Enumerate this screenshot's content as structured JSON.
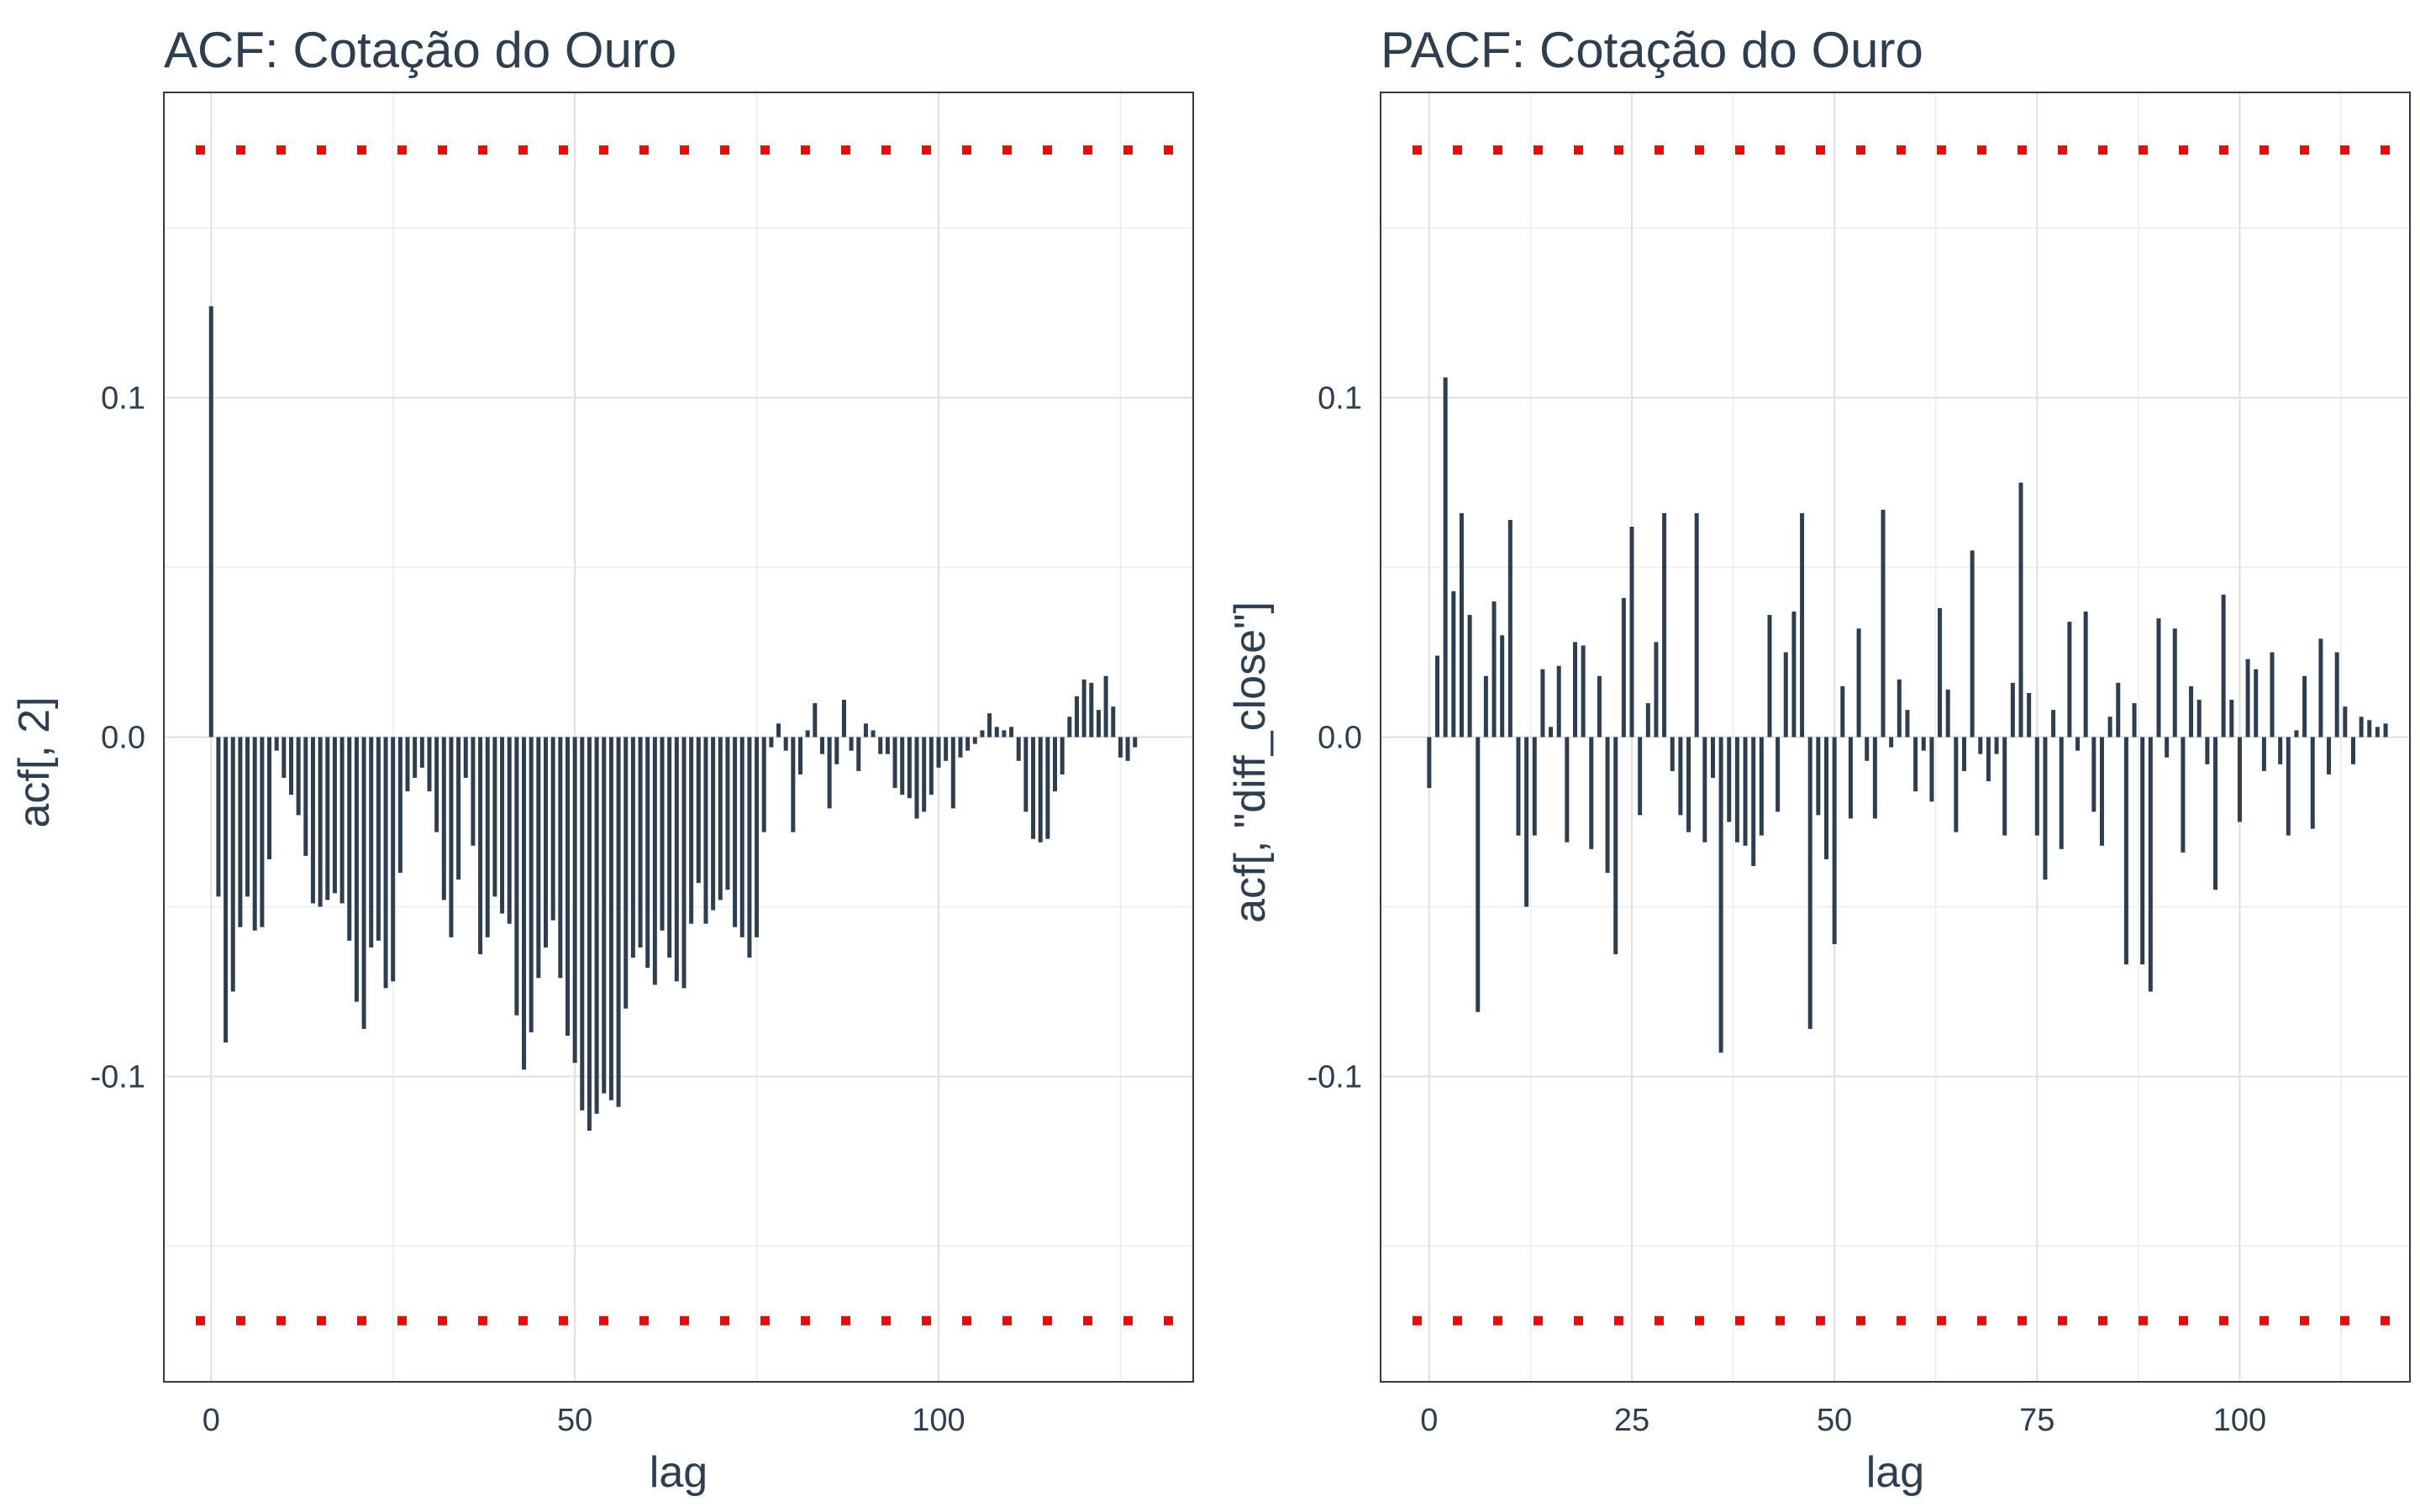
{
  "colors": {
    "bar": "#2c3e50",
    "limit": "#ff0000",
    "grid": "#e0e0e0",
    "frame": "#2c3e50",
    "text": "#2c3e50"
  },
  "chart_data": [
    {
      "type": "bar",
      "title": "ACF: Cotação do Ouro",
      "xlabel": "lag",
      "ylabel": "acf[, 2]",
      "xlim": [
        -6.5,
        135
      ],
      "ylim": [
        -0.19,
        0.19
      ],
      "xticks": [
        0,
        50,
        100
      ],
      "xtick_labels": [
        "0",
        "50",
        "100"
      ],
      "yticks": [
        -0.1,
        0.0,
        0.1
      ],
      "ytick_labels": [
        "-0.1",
        "0.0",
        "0.1"
      ],
      "grid": true,
      "limit_lines": [
        0.173,
        -0.172
      ],
      "x": [
        0,
        1,
        2,
        3,
        4,
        5,
        6,
        7,
        8,
        9,
        10,
        11,
        12,
        13,
        14,
        15,
        16,
        17,
        18,
        19,
        20,
        21,
        22,
        23,
        24,
        25,
        26,
        27,
        28,
        29,
        30,
        31,
        32,
        33,
        34,
        35,
        36,
        37,
        38,
        39,
        40,
        41,
        42,
        43,
        44,
        45,
        46,
        47,
        48,
        49,
        50,
        51,
        52,
        53,
        54,
        55,
        56,
        57,
        58,
        59,
        60,
        61,
        62,
        63,
        64,
        65,
        66,
        67,
        68,
        69,
        70,
        71,
        72,
        73,
        74,
        75,
        76,
        77,
        78,
        79,
        80,
        81,
        82,
        83,
        84,
        85,
        86,
        87,
        88,
        89,
        90,
        91,
        92,
        93,
        94,
        95,
        96,
        97,
        98,
        99,
        100,
        101,
        102,
        103,
        104,
        105,
        106,
        107,
        108,
        109,
        110,
        111,
        112,
        113,
        114,
        115,
        116,
        117,
        118,
        119,
        120,
        121,
        122,
        123,
        124,
        125,
        126,
        127
      ],
      "values": [
        0.127,
        -0.047,
        -0.09,
        -0.075,
        -0.056,
        -0.047,
        -0.057,
        -0.056,
        -0.036,
        -0.004,
        -0.012,
        -0.017,
        -0.023,
        -0.035,
        -0.049,
        -0.05,
        -0.048,
        -0.046,
        -0.049,
        -0.06,
        -0.078,
        -0.086,
        -0.062,
        -0.06,
        -0.074,
        -0.072,
        -0.04,
        -0.016,
        -0.012,
        -0.009,
        -0.016,
        -0.028,
        -0.048,
        -0.059,
        -0.042,
        -0.012,
        -0.032,
        -0.064,
        -0.059,
        -0.047,
        -0.052,
        -0.055,
        -0.082,
        -0.098,
        -0.087,
        -0.071,
        -0.062,
        -0.054,
        -0.071,
        -0.088,
        -0.096,
        -0.11,
        -0.116,
        -0.111,
        -0.105,
        -0.107,
        -0.109,
        -0.08,
        -0.065,
        -0.062,
        -0.068,
        -0.073,
        -0.057,
        -0.065,
        -0.072,
        -0.074,
        -0.055,
        -0.043,
        -0.055,
        -0.051,
        -0.048,
        -0.045,
        -0.056,
        -0.059,
        -0.065,
        -0.059,
        -0.028,
        -0.003,
        0.004,
        -0.004,
        -0.028,
        -0.011,
        0.002,
        0.01,
        -0.005,
        -0.021,
        -0.008,
        0.011,
        -0.004,
        -0.01,
        0.004,
        0.002,
        -0.005,
        -0.005,
        -0.015,
        -0.017,
        -0.018,
        -0.024,
        -0.022,
        -0.017,
        -0.009,
        -0.007,
        -0.021,
        -0.006,
        -0.004,
        -0.002,
        0.002,
        0.007,
        0.003,
        0.002,
        0.003,
        -0.007,
        -0.022,
        -0.03,
        -0.031,
        -0.03,
        -0.016,
        -0.011,
        0.006,
        0.012,
        0.017,
        0.016,
        0.008,
        0.018,
        0.009,
        -0.006,
        -0.007,
        -0.003
      ]
    },
    {
      "type": "bar",
      "title": "PACF: Cotação do Ouro",
      "xlabel": "lag",
      "ylabel": "acf[, \"diff_close\"]",
      "xlim": [
        -6,
        121
      ],
      "ylim": [
        -0.19,
        0.19
      ],
      "xticks": [
        0,
        25,
        50,
        75,
        100
      ],
      "xtick_labels": [
        "0",
        "25",
        "50",
        "75",
        "100"
      ],
      "yticks": [
        -0.1,
        0.0,
        0.1
      ],
      "ytick_labels": [
        "-0.1",
        "0.0",
        "0.1"
      ],
      "grid": true,
      "limit_lines": [
        0.173,
        -0.172
      ],
      "x": [
        0,
        1,
        2,
        3,
        4,
        5,
        6,
        7,
        8,
        9,
        10,
        11,
        12,
        13,
        14,
        15,
        16,
        17,
        18,
        19,
        20,
        21,
        22,
        23,
        24,
        25,
        26,
        27,
        28,
        29,
        30,
        31,
        32,
        33,
        34,
        35,
        36,
        37,
        38,
        39,
        40,
        41,
        42,
        43,
        44,
        45,
        46,
        47,
        48,
        49,
        50,
        51,
        52,
        53,
        54,
        55,
        56,
        57,
        58,
        59,
        60,
        61,
        62,
        63,
        64,
        65,
        66,
        67,
        68,
        69,
        70,
        71,
        72,
        73,
        74,
        75,
        76,
        77,
        78,
        79,
        80,
        81,
        82,
        83,
        84,
        85,
        86,
        87,
        88,
        89,
        90,
        91,
        92,
        93,
        94,
        95,
        96,
        97,
        98,
        99,
        100,
        101,
        102,
        103,
        104,
        105,
        106,
        107,
        108,
        109,
        110,
        111,
        112,
        113,
        114,
        115,
        116,
        117,
        118
      ],
      "values": [
        -0.015,
        0.024,
        0.106,
        0.043,
        0.066,
        0.036,
        -0.081,
        0.018,
        0.04,
        0.03,
        0.064,
        -0.029,
        -0.05,
        -0.029,
        0.02,
        0.003,
        0.021,
        -0.031,
        0.028,
        0.027,
        -0.033,
        0.018,
        -0.04,
        -0.064,
        0.041,
        0.062,
        -0.023,
        0.01,
        0.028,
        0.066,
        -0.01,
        -0.023,
        -0.028,
        0.066,
        -0.031,
        -0.012,
        -0.093,
        -0.025,
        -0.031,
        -0.032,
        -0.038,
        -0.029,
        0.036,
        -0.022,
        0.025,
        0.037,
        0.066,
        -0.086,
        -0.023,
        -0.036,
        -0.061,
        0.015,
        -0.024,
        0.032,
        -0.007,
        -0.024,
        0.067,
        -0.003,
        0.017,
        0.008,
        -0.016,
        -0.004,
        -0.019,
        0.038,
        0.014,
        -0.028,
        -0.01,
        0.055,
        -0.005,
        -0.013,
        -0.005,
        -0.029,
        0.016,
        0.075,
        0.013,
        -0.029,
        -0.042,
        0.008,
        -0.033,
        0.034,
        -0.004,
        0.037,
        -0.022,
        -0.032,
        0.006,
        0.016,
        -0.067,
        0.01,
        -0.067,
        -0.075,
        0.035,
        -0.006,
        0.032,
        -0.034,
        0.015,
        0.011,
        -0.008,
        -0.045,
        0.042,
        0.011,
        -0.025,
        0.023,
        0.02,
        -0.01,
        0.025,
        -0.008,
        -0.029,
        0.002,
        0.018,
        -0.027,
        0.029,
        -0.011,
        0.025,
        0.009,
        -0.008,
        0.006,
        0.005,
        0.003,
        0.004
      ]
    }
  ]
}
